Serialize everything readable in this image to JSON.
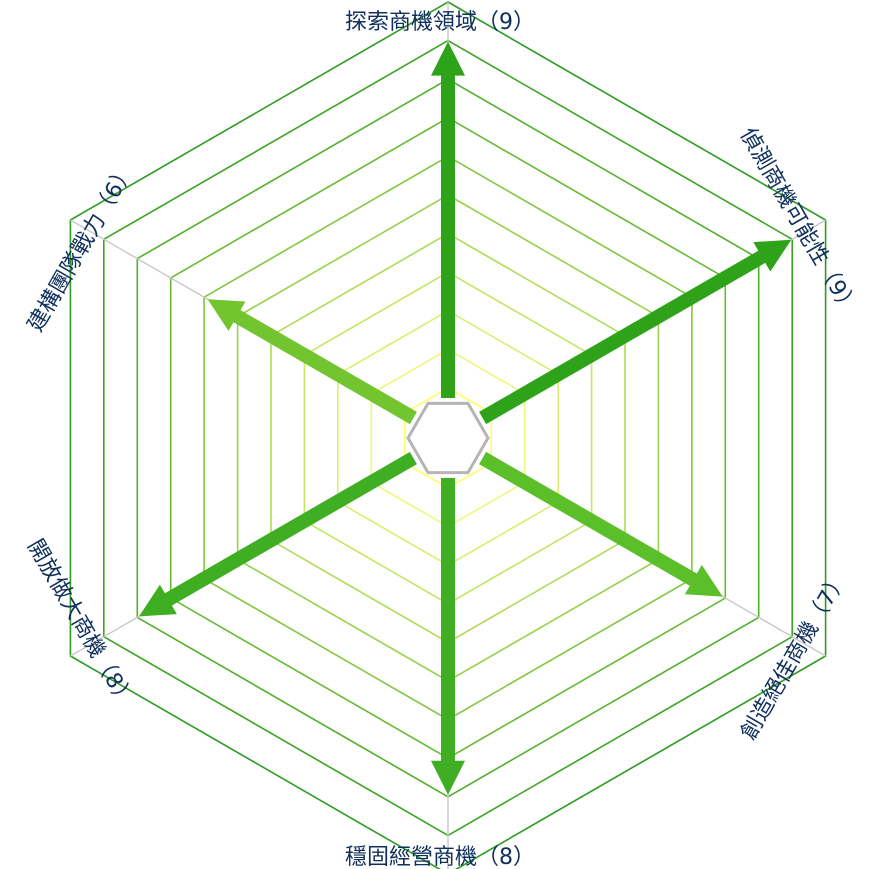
{
  "chart_data": {
    "type": "radar",
    "scale_max": 10,
    "axes": [
      {
        "label": "探索商機領域（9）",
        "value": 9,
        "color": "#2ea31a"
      },
      {
        "label": "偵測商機可能性（9）",
        "value": 9,
        "color": "#2ea31a"
      },
      {
        "label": "創造絕佳商機（7）",
        "value": 7,
        "color": "#5bbf2a"
      },
      {
        "label": "穩固經營商機（8）",
        "value": 8,
        "color": "#3fae22"
      },
      {
        "label": "開放做大商機（8）",
        "value": 8,
        "color": "#3fae22"
      },
      {
        "label": "建構團隊戰力（6）",
        "value": 6,
        "color": "#72c52e"
      }
    ],
    "ring_colors": [
      "#ffff66",
      "#eef77a",
      "#d9ef6f",
      "#c4e663",
      "#aedc57",
      "#97d24b",
      "#80c73f",
      "#69bb34",
      "#52b02a",
      "#3ca524",
      "#2d9c22"
    ],
    "spoke_color": "#c8c8c8",
    "center_color": "#b5b5b5"
  }
}
